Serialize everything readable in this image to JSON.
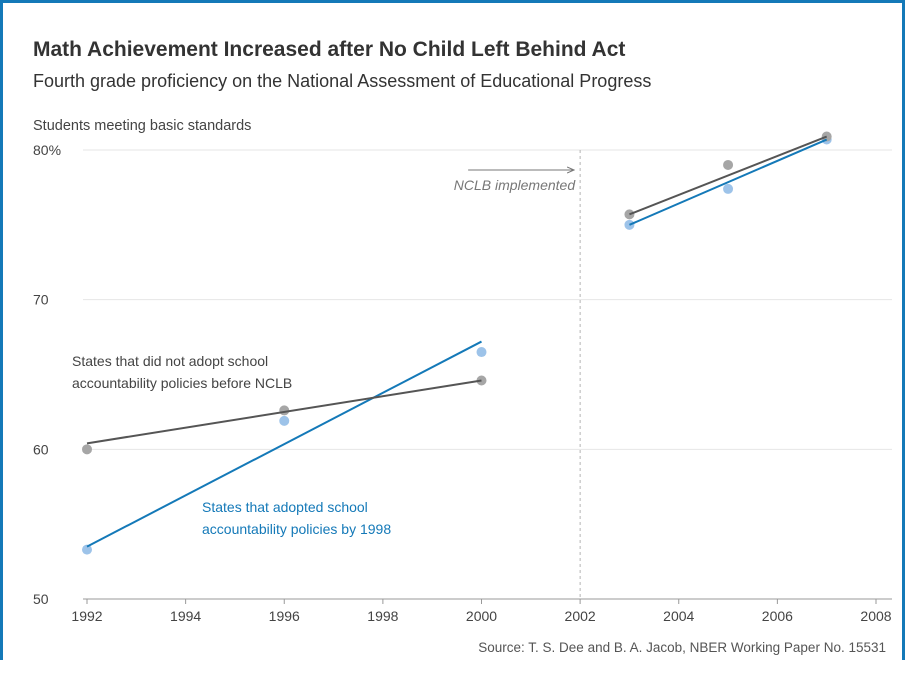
{
  "title": "Math Achievement Increased after No Child Left Behind Act",
  "subtitle": "Fourth grade proficiency on the National Assessment of Educational Progress",
  "source": "Source: T. S. Dee and B. A. Jacob, NBER Working Paper No. 15531",
  "colors": {
    "frame": "#1479b8",
    "series_adopted": "#1479b8",
    "series_adopted_points": "#9dc3e9",
    "series_not_adopted": "#555555",
    "series_not_adopted_points": "#a6a6a6",
    "annotation": "#777777"
  },
  "chart_data": {
    "type": "scatter",
    "title": "Math Achievement Increased after No Child Left Behind Act",
    "subtitle": "Fourth grade proficiency on the National Assessment of Educational Progress",
    "ylabel": "Students meeting basic standards",
    "xlabel": "",
    "xlim": [
      1992,
      2008
    ],
    "ylim": [
      50,
      80
    ],
    "x_ticks": [
      1992,
      1994,
      1996,
      1998,
      2000,
      2002,
      2004,
      2006,
      2008
    ],
    "y_ticks": [
      {
        "value": 50,
        "label": "50"
      },
      {
        "value": 60,
        "label": "60"
      },
      {
        "value": 70,
        "label": "70"
      },
      {
        "value": 80,
        "label": "80%"
      }
    ],
    "grid": "horizontal",
    "series": [
      {
        "name": "States that adopted school accountability policies by 1998",
        "label_lines": [
          "States that adopted school",
          "accountability policies by 1998"
        ],
        "points": [
          {
            "x": 1992,
            "y": 53.3
          },
          {
            "x": 1996,
            "y": 61.9
          },
          {
            "x": 2000,
            "y": 66.5
          },
          {
            "x": 2003,
            "y": 75.0
          },
          {
            "x": 2005,
            "y": 77.4
          },
          {
            "x": 2007,
            "y": 80.7
          }
        ],
        "trend_lines": [
          {
            "x": [
              1992,
              2000
            ],
            "y": [
              53.5,
              67.2
            ]
          },
          {
            "x": [
              2003,
              2007
            ],
            "y": [
              75.0,
              80.7
            ]
          }
        ]
      },
      {
        "name": "States that did not adopt school accountability policies before NCLB",
        "label_lines": [
          "States that did not adopt school",
          "accountability policies before NCLB"
        ],
        "points": [
          {
            "x": 1992,
            "y": 60.0
          },
          {
            "x": 1996,
            "y": 62.6
          },
          {
            "x": 2000,
            "y": 64.6
          },
          {
            "x": 2003,
            "y": 75.7
          },
          {
            "x": 2005,
            "y": 79.0
          },
          {
            "x": 2007,
            "y": 80.9
          }
        ],
        "trend_lines": [
          {
            "x": [
              1992,
              2000
            ],
            "y": [
              60.4,
              64.6
            ]
          },
          {
            "x": [
              2003,
              2007
            ],
            "y": [
              75.7,
              80.9
            ]
          }
        ]
      }
    ],
    "annotations": [
      {
        "text": "NCLB implemented",
        "x": 2002,
        "y": 78,
        "style": "italic-arrow"
      }
    ],
    "vertical_reference": {
      "x": 2002
    }
  }
}
